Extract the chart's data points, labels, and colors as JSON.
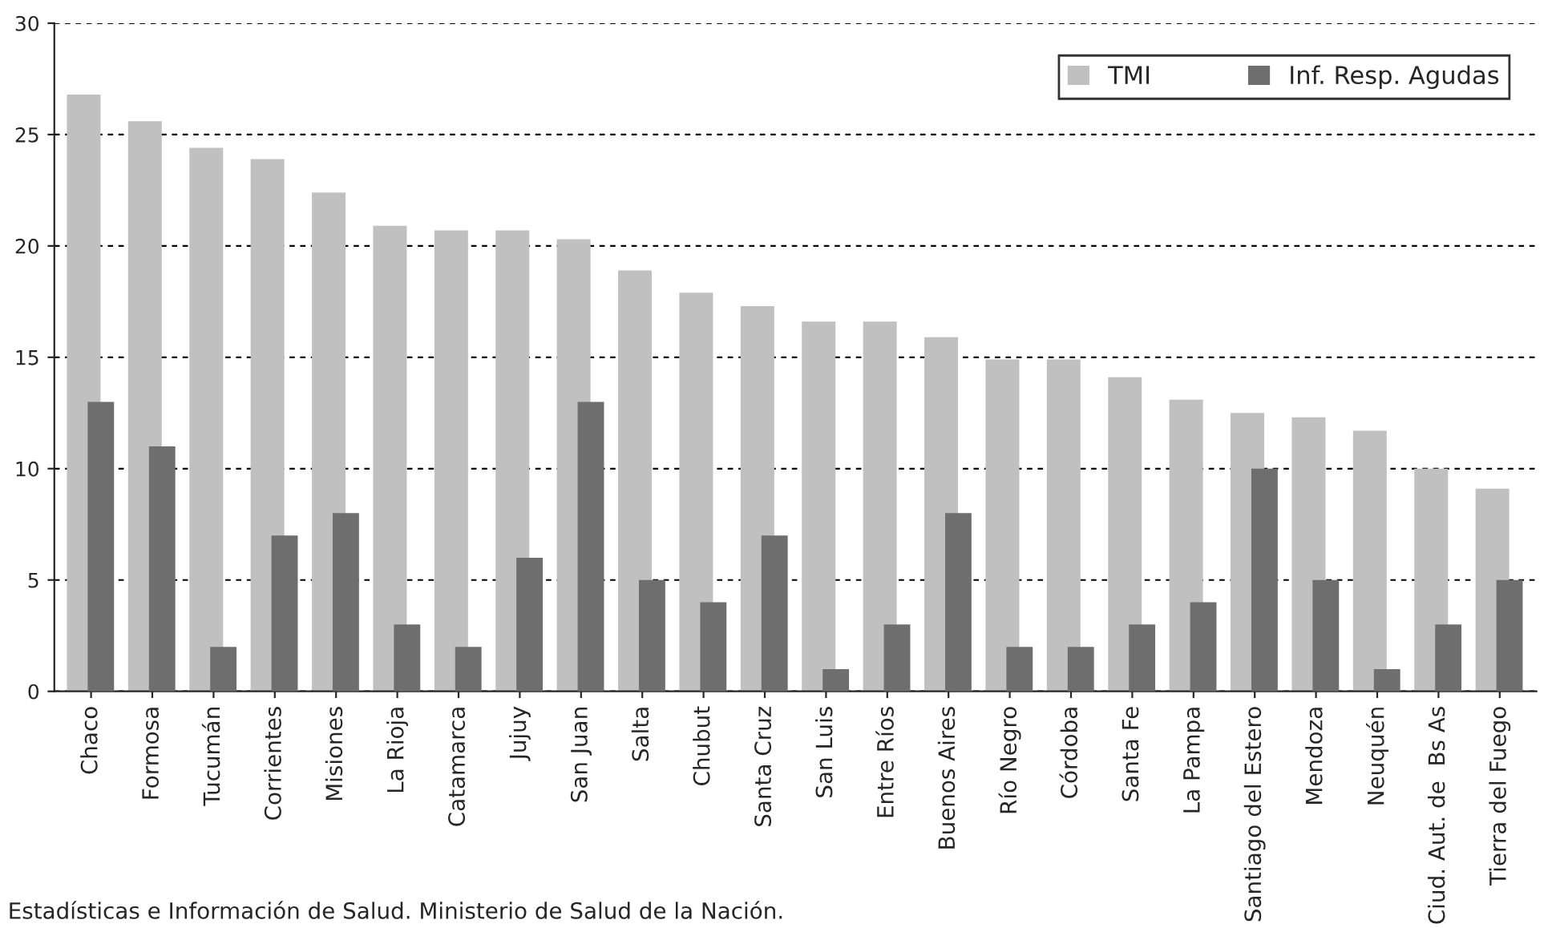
{
  "chart_data": {
    "type": "bar",
    "categories": [
      "Chaco",
      "Formosa",
      "Tucumán",
      "Corrientes",
      "Misiones",
      "La Rioja",
      "Catamarca",
      "Jujuy",
      "San Juan",
      "Salta",
      "Chubut",
      "Santa Cruz",
      "San Luis",
      "Entre Ríos",
      "Buenos Aires",
      "Río Negro",
      "Córdoba",
      "Santa Fe",
      "La Pampa",
      "Santiago del Estero",
      "Mendoza",
      "Neuquén",
      "Ciud. Aut. de  Bs As",
      "Tierra del Fuego"
    ],
    "series": [
      {
        "name": "TMI",
        "color": "#c0c0c0",
        "values": [
          26.8,
          25.6,
          24.4,
          23.9,
          22.4,
          20.9,
          20.7,
          20.7,
          20.3,
          18.9,
          17.9,
          17.3,
          16.6,
          16.6,
          15.9,
          14.9,
          14.9,
          14.1,
          13.1,
          12.5,
          12.3,
          11.7,
          10.0,
          9.1
        ]
      },
      {
        "name": "Inf. Resp. Agudas",
        "color": "#6e6e6e",
        "values": [
          13,
          11,
          2,
          7,
          8,
          3,
          2,
          6,
          13,
          5,
          4,
          7,
          1,
          3,
          8,
          2,
          2,
          3,
          4,
          10,
          5,
          1,
          3,
          5
        ]
      }
    ],
    "ylim": [
      0,
      30
    ],
    "yticks": [
      0,
      5,
      10,
      15,
      20,
      25,
      30
    ],
    "grid": "y",
    "legend": "top right",
    "annotations": [
      "Estadísticas e Información de Salud. Ministerio de Salud de la Nación."
    ]
  }
}
